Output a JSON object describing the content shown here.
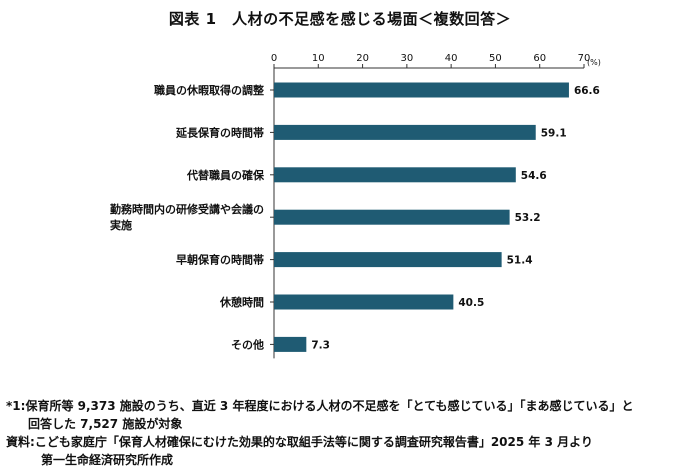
{
  "title": "図表 1　人材の不足感を感じる場面＜複数回答＞",
  "chart_data": {
    "type": "bar",
    "orientation": "horizontal",
    "unit": "(%)",
    "xlim": [
      0,
      70
    ],
    "ticks": [
      0,
      10,
      20,
      30,
      40,
      50,
      60,
      70
    ],
    "categories": [
      [
        "職員の休暇取得の調整"
      ],
      [
        "延長保育の時間帯"
      ],
      [
        "代替職員の確保"
      ],
      [
        "勤務時間内の研修受講や会議の",
        "実施"
      ],
      [
        "早朝保育の時間帯"
      ],
      [
        "休憩時間"
      ],
      [
        "その他"
      ]
    ],
    "values": [
      66.6,
      59.1,
      54.6,
      53.2,
      51.4,
      40.5,
      7.3
    ],
    "value_labels": [
      "66.6",
      "59.1",
      "54.6",
      "53.2",
      "51.4",
      "40.5",
      "7.3"
    ],
    "bar_color": "#1f5b73",
    "grid": false
  },
  "notes": {
    "note1_mark": "*1:",
    "note1_line1": "保育所等 9,373 施設のうち、直近 3 年程度における人材の不足感を「とても感じている」「まあ感じている」と",
    "note1_line2": "回答した 7,527 施設が対象",
    "source_mark": "資料:",
    "source_line1": "こども家庭庁「保育人材確保にむけた効果的な取組手法等に関する調査研究報告書」2025 年 3 月より",
    "source_line2": "第一生命経済研究所作成"
  }
}
